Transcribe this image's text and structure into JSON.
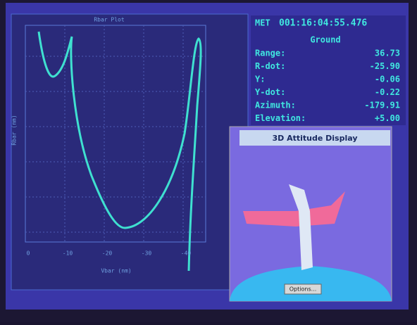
{
  "plot": {
    "title": "Rbar Plot",
    "x_label": "Vbar (nm)",
    "y_label": "Rbar (nm)",
    "x_ticks": [
      "0",
      "-10",
      "-20",
      "-30",
      "-40"
    ]
  },
  "readout": {
    "met_label": "MET",
    "met": "001:16:04:55.476",
    "frame": "Ground",
    "rows": [
      [
        "Range:",
        "36.73"
      ],
      [
        "R-dot:",
        "-25.90"
      ],
      [
        "Y:",
        "-0.06"
      ],
      [
        "Y-dot:",
        "-0.22"
      ],
      [
        "Azimuth:",
        "-179.91"
      ],
      [
        "Elevation:",
        "+5.00"
      ]
    ]
  },
  "attitude": {
    "title": "3D Attitude Display",
    "button": "Options..."
  }
}
